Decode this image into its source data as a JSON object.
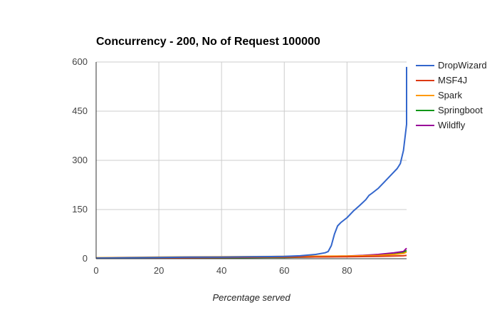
{
  "chart_data": {
    "type": "line",
    "title": "Concurrency - 200, No of Request 100000",
    "xlabel": "Percentage served",
    "ylabel": "",
    "xlim": [
      0,
      99
    ],
    "ylim": [
      0,
      600
    ],
    "x_ticks": [
      0,
      20,
      40,
      60,
      80
    ],
    "y_ticks": [
      0,
      150,
      300,
      450,
      600
    ],
    "grid": true,
    "legend": "right",
    "series": [
      {
        "name": "DropWizard",
        "color": "#3366cc",
        "points": [
          [
            0,
            2
          ],
          [
            10,
            3
          ],
          [
            20,
            4
          ],
          [
            30,
            5
          ],
          [
            40,
            5
          ],
          [
            50,
            6
          ],
          [
            60,
            7
          ],
          [
            65,
            9
          ],
          [
            70,
            13
          ],
          [
            73,
            18
          ],
          [
            74,
            22
          ],
          [
            75,
            40
          ],
          [
            76,
            75
          ],
          [
            77,
            100
          ],
          [
            78,
            110
          ],
          [
            80,
            125
          ],
          [
            82,
            145
          ],
          [
            84,
            162
          ],
          [
            86,
            180
          ],
          [
            87,
            193
          ],
          [
            88,
            200
          ],
          [
            90,
            215
          ],
          [
            92,
            235
          ],
          [
            94,
            255
          ],
          [
            96,
            275
          ],
          [
            97,
            290
          ],
          [
            98,
            330
          ],
          [
            99,
            410
          ],
          [
            99.5,
            450
          ],
          [
            100,
            585
          ]
        ]
      },
      {
        "name": "MSF4J",
        "color": "#dc3912",
        "points": [
          [
            0,
            2
          ],
          [
            20,
            3
          ],
          [
            40,
            4
          ],
          [
            60,
            5
          ],
          [
            80,
            6
          ],
          [
            90,
            7
          ],
          [
            95,
            8
          ],
          [
            98,
            9
          ],
          [
            100,
            10
          ]
        ]
      },
      {
        "name": "Spark",
        "color": "#ff9900",
        "points": [
          [
            0,
            3
          ],
          [
            20,
            5
          ],
          [
            40,
            6
          ],
          [
            60,
            7
          ],
          [
            80,
            8
          ],
          [
            90,
            10
          ],
          [
            95,
            13
          ],
          [
            98,
            16
          ],
          [
            100,
            20
          ]
        ]
      },
      {
        "name": "Springboot",
        "color": "#109618",
        "points": [
          [
            0,
            1
          ],
          [
            20,
            2
          ],
          [
            40,
            3
          ],
          [
            60,
            4
          ],
          [
            80,
            7
          ],
          [
            90,
            10
          ],
          [
            95,
            14
          ],
          [
            98,
            18
          ],
          [
            100,
            25
          ]
        ]
      },
      {
        "name": "Wildfly",
        "color": "#990099",
        "points": [
          [
            0,
            1
          ],
          [
            20,
            2
          ],
          [
            40,
            3
          ],
          [
            60,
            5
          ],
          [
            80,
            8
          ],
          [
            85,
            10
          ],
          [
            90,
            13
          ],
          [
            95,
            18
          ],
          [
            98,
            22
          ],
          [
            100,
            32
          ]
        ]
      }
    ]
  }
}
